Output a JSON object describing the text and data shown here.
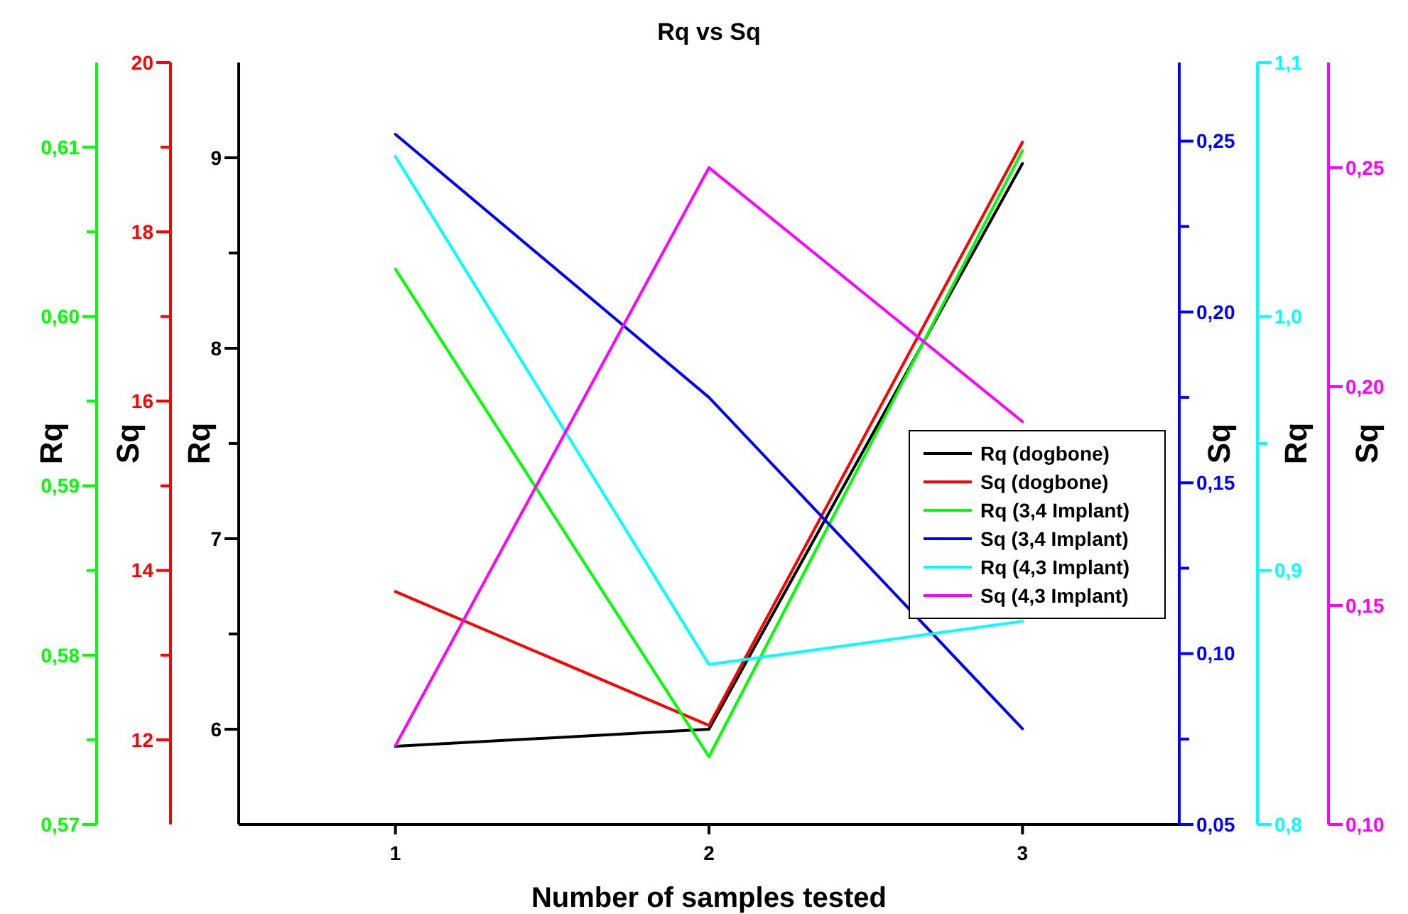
{
  "chart_data": [
    {
      "type": "line",
      "title": "Rq vs Sq",
      "xlabel": "Number of samples tested",
      "ylabel": "Rq",
      "y2label": "Sq",
      "y3label": "Rq",
      "x": [
        1,
        2,
        3
      ],
      "xlim": [
        0.5,
        3.5
      ],
      "xticks": [
        1,
        2,
        3
      ],
      "ylim": [
        5.5,
        9.5
      ],
      "yticks": [
        {
          "value": 6,
          "label": "6"
        },
        {
          "value": 6.5,
          "label": null
        },
        {
          "value": 7,
          "label": "7"
        },
        {
          "value": 7.5,
          "label": null
        },
        {
          "value": 8,
          "label": "8"
        },
        {
          "value": 8.5,
          "label": null
        },
        {
          "value": 9,
          "label": "9"
        }
      ],
      "y2lim": [
        11,
        20
      ],
      "y2ticks": [
        {
          "value": 12,
          "label": "12"
        },
        {
          "value": 13,
          "label": null
        },
        {
          "value": 14,
          "label": "14"
        },
        {
          "value": 15,
          "label": null
        },
        {
          "value": 16,
          "label": "16"
        },
        {
          "value": 17,
          "label": null
        },
        {
          "value": 18,
          "label": "18"
        },
        {
          "value": 19,
          "label": null
        },
        {
          "value": 20,
          "label": "20"
        }
      ],
      "y3lim": [
        0.57,
        0.615
      ],
      "y3ticks": [
        {
          "value": 0.57,
          "label": "0,57"
        },
        {
          "value": 0.575,
          "label": null
        },
        {
          "value": 0.58,
          "label": "0,58"
        },
        {
          "value": 0.585,
          "label": null
        },
        {
          "value": 0.59,
          "label": "0,59"
        },
        {
          "value": 0.595,
          "label": null
        },
        {
          "value": 0.6,
          "label": "0,60"
        },
        {
          "value": 0.605,
          "label": null
        },
        {
          "value": 0.61,
          "label": "0,61"
        }
      ],
      "series": [
        {
          "name": "Rq (dogbone)",
          "color": "#000000",
          "values": [
            5.91,
            6.0,
            8.97
          ]
        },
        {
          "name": "Sq (dogbone)",
          "color": "#ff0000",
          "axis": "y2",
          "values": [
            13.75,
            12.17,
            19.06
          ]
        },
        {
          "name": "Rq (3,4 Implant)",
          "color": "#00ff00",
          "axis": "y3",
          "values": [
            0.6028,
            0.574,
            0.6098
          ]
        }
      ],
      "legend": "right",
      "grid": false,
      "marker": "none",
      "line_style": "solid"
    },
    {
      "type": "line",
      "ylabel": "Sq",
      "y2label": "Rq",
      "y3label": "Sq",
      "tick_labels": "y",
      "x": [
        1,
        2,
        3
      ],
      "xlim": [
        0.5,
        3.5
      ],
      "ylim": [
        0.05,
        0.273
      ],
      "yticks": [
        {
          "value": 0.05,
          "label": "0,05"
        },
        {
          "value": 0.075,
          "label": null
        },
        {
          "value": 0.1,
          "label": "0,10"
        },
        {
          "value": 0.125,
          "label": null
        },
        {
          "value": 0.15,
          "label": "0,15"
        },
        {
          "value": 0.175,
          "label": null
        },
        {
          "value": 0.2,
          "label": "0,20"
        },
        {
          "value": 0.225,
          "label": null
        },
        {
          "value": 0.25,
          "label": "0,25"
        }
      ],
      "y2lim": [
        0.8,
        1.1
      ],
      "y2ticks": [
        {
          "value": 0.8,
          "label": "0,8"
        },
        {
          "value": 0.9,
          "label": "0,9"
        },
        {
          "value": 0.95,
          "label": null
        },
        {
          "value": 1.0,
          "label": "1,0"
        },
        {
          "value": 1.1,
          "label": "1,1"
        }
      ],
      "y3lim": [
        0.1,
        0.274
      ],
      "y3ticks": [
        {
          "value": 0.1,
          "label": "0,10"
        },
        {
          "value": 0.15,
          "label": "0,15"
        },
        {
          "value": 0.2,
          "label": "0,20"
        },
        {
          "value": 0.25,
          "label": "0,25"
        }
      ],
      "series": [
        {
          "name": "Sq (3,4 Implant)",
          "color": "#0000ff",
          "values": [
            0.252,
            0.175,
            0.078
          ]
        },
        {
          "name": "Rq (4,3 Implant)",
          "color": "#00ffff",
          "axis": "y2",
          "values": [
            1.063,
            0.863,
            0.88
          ]
        },
        {
          "name": "Sq (4,3 Implant)",
          "color": "#ff00ff",
          "axis": "y3",
          "values": [
            0.118,
            0.25,
            0.192
          ]
        }
      ],
      "legend": "right",
      "grid": false,
      "marker": "none",
      "line_style": "solid"
    }
  ]
}
